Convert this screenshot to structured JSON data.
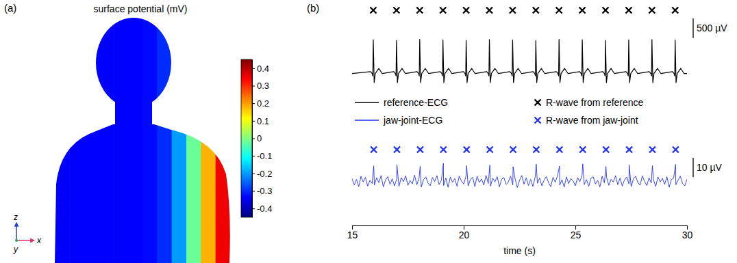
{
  "chart_data": [
    {
      "type": "surface",
      "panel": "(a)",
      "title": "surface potential (mV)",
      "values": [
        -0.34,
        -0.34,
        -0.34,
        -0.34,
        -0.34,
        -0.34,
        -0.33,
        -0.3,
        -0.2,
        -0.02,
        0.18,
        0.35
      ],
      "colorbar": {
        "range": [
          -0.45,
          0.45
        ],
        "ticks": [
          -0.4,
          -0.3,
          -0.2,
          -0.1,
          0,
          0.1,
          0.2,
          0.3,
          0.4
        ]
      },
      "axis_labels": [
        "x",
        "y",
        "z"
      ]
    },
    {
      "type": "line",
      "panel": "(b)",
      "xlabel": "time (s)",
      "xlim": [
        15,
        30
      ],
      "xticks": [
        15,
        20,
        25,
        30
      ],
      "tick_labels": "x",
      "legend": "center",
      "series": [
        {
          "name": "reference-ECG",
          "type": "line",
          "color": "#000000",
          "ylim": [
            -300,
            1400
          ],
          "scale_bar": {
            "value": 500,
            "label": "500 µV"
          },
          "x": [
            15,
            15.83,
            15.9,
            15.93,
            15.95,
            15.99,
            16.04,
            16.2,
            16.35,
            16.87,
            16.94,
            16.97,
            16.99,
            17.03,
            17.08,
            17.24,
            17.39,
            17.91,
            17.98,
            18.01,
            18.03,
            18.07,
            18.12,
            18.28,
            18.43,
            18.95,
            19.02,
            19.05,
            19.07,
            19.11,
            19.16,
            19.32,
            19.47,
            19.99,
            20.06,
            20.09,
            20.11,
            20.15,
            20.2,
            20.36,
            20.51,
            21.03,
            21.1,
            21.13,
            21.15,
            21.19,
            21.24,
            21.4,
            21.55,
            22.07,
            22.14,
            22.17,
            22.19,
            22.23,
            22.28,
            22.44,
            22.59,
            23.11,
            23.18,
            23.21,
            23.23,
            23.27,
            23.32,
            23.48,
            23.63,
            24.15,
            24.22,
            24.25,
            24.27,
            24.31,
            24.36,
            24.52,
            24.67,
            25.19,
            25.26,
            25.29,
            25.31,
            25.35,
            25.4,
            25.56,
            25.71,
            26.23,
            26.3,
            26.33,
            26.35,
            26.39,
            26.44,
            26.6,
            26.75,
            27.27,
            27.34,
            27.37,
            27.39,
            27.43,
            27.48,
            27.64,
            27.79,
            28.31,
            28.38,
            28.41,
            28.43,
            28.47,
            28.52,
            28.68,
            28.83,
            29.35,
            29.42,
            29.45,
            29.47,
            29.51,
            29.56,
            29.72,
            29.87,
            30
          ],
          "values": [
            0,
            50,
            0,
            -60,
            860,
            -230,
            0,
            130,
            0,
            50,
            0,
            -60,
            840,
            -230,
            0,
            130,
            0,
            50,
            0,
            -60,
            870,
            -230,
            0,
            130,
            0,
            50,
            0,
            -60,
            855,
            -230,
            0,
            130,
            0,
            50,
            0,
            -60,
            845,
            -230,
            0,
            130,
            0,
            50,
            0,
            -60,
            865,
            -230,
            0,
            130,
            0,
            50,
            0,
            -60,
            850,
            -230,
            0,
            130,
            0,
            50,
            0,
            -60,
            835,
            -230,
            0,
            130,
            0,
            50,
            0,
            -60,
            870,
            -230,
            0,
            130,
            0,
            50,
            0,
            -60,
            860,
            -230,
            0,
            130,
            0,
            50,
            0,
            -60,
            845,
            -230,
            0,
            130,
            0,
            50,
            0,
            -60,
            855,
            -230,
            0,
            130,
            0,
            50,
            0,
            -60,
            865,
            -230,
            0,
            130,
            0,
            50,
            0,
            -60,
            850,
            -230,
            0,
            130,
            0,
            0
          ]
        },
        {
          "name": "R-wave from reference",
          "type": "scatter",
          "marker": "x",
          "color": "#000000",
          "x": [
            15.95,
            16.99,
            18.03,
            19.07,
            20.11,
            21.15,
            22.19,
            23.23,
            24.27,
            25.31,
            26.35,
            27.39,
            28.43,
            29.47
          ]
        },
        {
          "name": "jaw-joint-ECG",
          "type": "line",
          "color": "#2233ee",
          "ylim": [
            -10,
            12
          ],
          "scale_bar": {
            "value": 10,
            "label": "10 µV"
          },
          "x": [
            15,
            15.1,
            15.2,
            15.3,
            15.4,
            15.5,
            15.6,
            15.7,
            15.8,
            15.9,
            15.97,
            16,
            16.1,
            16.2,
            16.3,
            16.4,
            16.5,
            16.6,
            16.7,
            16.8,
            16.9,
            17,
            17.01,
            17.1,
            17.2,
            17.3,
            17.4,
            17.5,
            17.6,
            17.7,
            17.8,
            17.9,
            18,
            18.05,
            18.1,
            18.2,
            18.3,
            18.4,
            18.5,
            18.6,
            18.7,
            18.8,
            18.9,
            19,
            19.09,
            19.1,
            19.2,
            19.3,
            19.4,
            19.5,
            19.6,
            19.7,
            19.8,
            19.9,
            20,
            20.1,
            20.13,
            20.2,
            20.3,
            20.4,
            20.5,
            20.6,
            20.7,
            20.8,
            20.9,
            21,
            21.1,
            21.17,
            21.2,
            21.3,
            21.4,
            21.5,
            21.6,
            21.7,
            21.8,
            21.9,
            22,
            22.1,
            22.2,
            22.21,
            22.3,
            22.4,
            22.5,
            22.6,
            22.7,
            22.8,
            22.9,
            23,
            23.1,
            23.2,
            23.25,
            23.3,
            23.4,
            23.5,
            23.6,
            23.7,
            23.8,
            23.9,
            24,
            24.1,
            24.2,
            24.29,
            24.3,
            24.4,
            24.5,
            24.6,
            24.7,
            24.8,
            24.9,
            25,
            25.1,
            25.2,
            25.3,
            25.33,
            25.4,
            25.5,
            25.6,
            25.7,
            25.8,
            25.9,
            26,
            26.1,
            26.2,
            26.3,
            26.37,
            26.4,
            26.5,
            26.6,
            26.7,
            26.8,
            26.9,
            27,
            27.1,
            27.2,
            27.3,
            27.4,
            27.41,
            27.5,
            27.6,
            27.7,
            27.8,
            27.9,
            28,
            28.1,
            28.2,
            28.3,
            28.4,
            28.45,
            28.5,
            28.6,
            28.7,
            28.8,
            28.9,
            29,
            29.1,
            29.2,
            29.3,
            29.4,
            29.49,
            29.5,
            29.6,
            29.7,
            29.8,
            29.9,
            30
          ],
          "values": [
            1.2,
            -2.1,
            0.8,
            -3.0,
            2.4,
            -0.6,
            1.9,
            -2.7,
            0.3,
            -1.4,
            7.8,
            -2.2,
            1.6,
            -0.9,
            2.8,
            -3.1,
            0.5,
            2.2,
            -1.8,
            1.1,
            -2.6,
            0.9,
            8.4,
            -2.9,
            1.7,
            -0.4,
            2.6,
            -2.3,
            0.2,
            -1.5,
            3.0,
            -2.0,
            1.3,
            7.6,
            -3.2,
            0.6,
            2.1,
            -1.1,
            -2.5,
            1.8,
            -0.3,
            2.7,
            -1.9,
            0.4,
            9.1,
            -2.4,
            1.5,
            -3.3,
            2.0,
            -0.7,
            1.2,
            -2.8,
            2.5,
            -0.2,
            -1.6,
            2.3,
            7.9,
            -2.6,
            0.7,
            1.9,
            -3.0,
            2.4,
            -0.8,
            1.0,
            -2.2,
            2.9,
            -1.3,
            8.2,
            -2.7,
            1.4,
            -0.5,
            2.2,
            -3.1,
            0.9,
            1.7,
            -1.8,
            -0.6,
            2.5,
            -2.1,
            7.4,
            1.1,
            -3.4,
            0.3,
            2.8,
            -1.7,
            1.6,
            -2.4,
            0.8,
            -2.9,
            2.0,
            8.7,
            -1.2,
            1.5,
            -2.6,
            0.4,
            2.3,
            -0.9,
            -3.0,
            1.9,
            -0.7,
            2.6,
            7.7,
            -2.2,
            0.6,
            -3.2,
            2.1,
            -1.4,
            1.3,
            -0.1,
            -2.5,
            1.7,
            -0.4,
            2.9,
            8.9,
            -1.9,
            0.7,
            -2.8,
            1.4,
            2.2,
            -1.6,
            0.2,
            -3.1,
            2.4,
            -1.0,
            7.5,
            1.8,
            -2.3,
            0.9,
            -0.6,
            2.7,
            -2.0,
            1.5,
            -2.7,
            0.5,
            2.0,
            -1.5,
            8.3,
            -3.0,
            1.1,
            2.4,
            -0.8,
            -2.2,
            2.6,
            -0.3,
            -2.4,
            1.6,
            -1.1,
            7.9,
            0.6,
            -2.9,
            2.1,
            -0.5,
            1.3,
            -1.8,
            2.2,
            -3.3,
            0.8,
            1.4,
            8.6,
            -2.0,
            0.3,
            2.5,
            -1.3,
            -2.6,
            0.9
          ]
        },
        {
          "name": "R-wave from jaw-joint",
          "type": "scatter",
          "marker": "x",
          "color": "#2233ee",
          "x": [
            15.97,
            17.01,
            18.05,
            19.09,
            20.13,
            21.17,
            22.21,
            23.25,
            24.29,
            25.33,
            26.37,
            27.41,
            28.45,
            29.49
          ]
        }
      ]
    }
  ]
}
